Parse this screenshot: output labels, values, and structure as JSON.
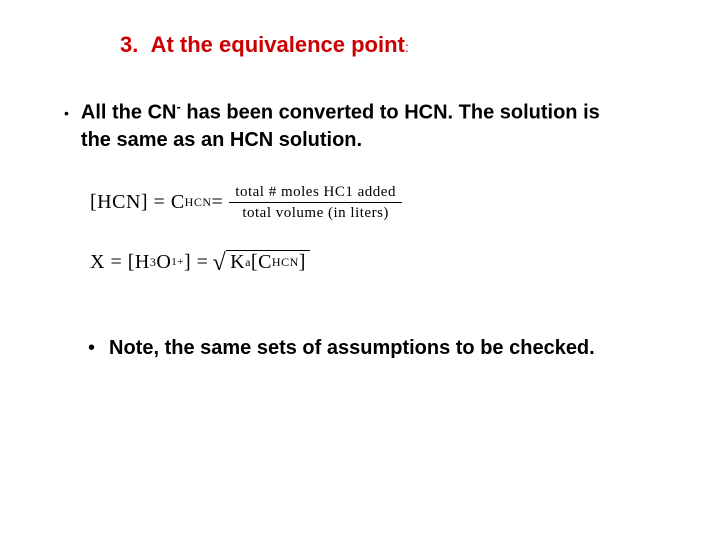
{
  "heading": {
    "number": "3.",
    "text": "At the equivalence point",
    "colon": ":",
    "color": "#cc0000",
    "fontsize": 22
  },
  "bullet1": {
    "marker": "•",
    "pre": "All the CN",
    "sup": "-",
    "post": " has been converted to HCN. The solution is the same as an HCN solution.",
    "fontsize": 20
  },
  "eq1": {
    "lhs": "[HCN] = C",
    "lhs_sub": "HCN",
    "eq": " = ",
    "num": "total # moles HC1 added",
    "den": "total volume (in liters)"
  },
  "eq2": {
    "lhs_pre": "X = [H",
    "lhs_sub1": "3",
    "lhs_mid": "O",
    "lhs_sup": "1+",
    "lhs_post": "] = ",
    "root_k": "K",
    "root_k_sub": "a",
    "root_open": "[C",
    "root_c_sub": "HCN",
    "root_close": "]"
  },
  "bullet2": {
    "marker": "•",
    "text": "Note, the same sets of assumptions to be checked.",
    "fontsize": 20
  },
  "colors": {
    "background": "#ffffff",
    "text": "#000000",
    "heading": "#cc0000"
  }
}
